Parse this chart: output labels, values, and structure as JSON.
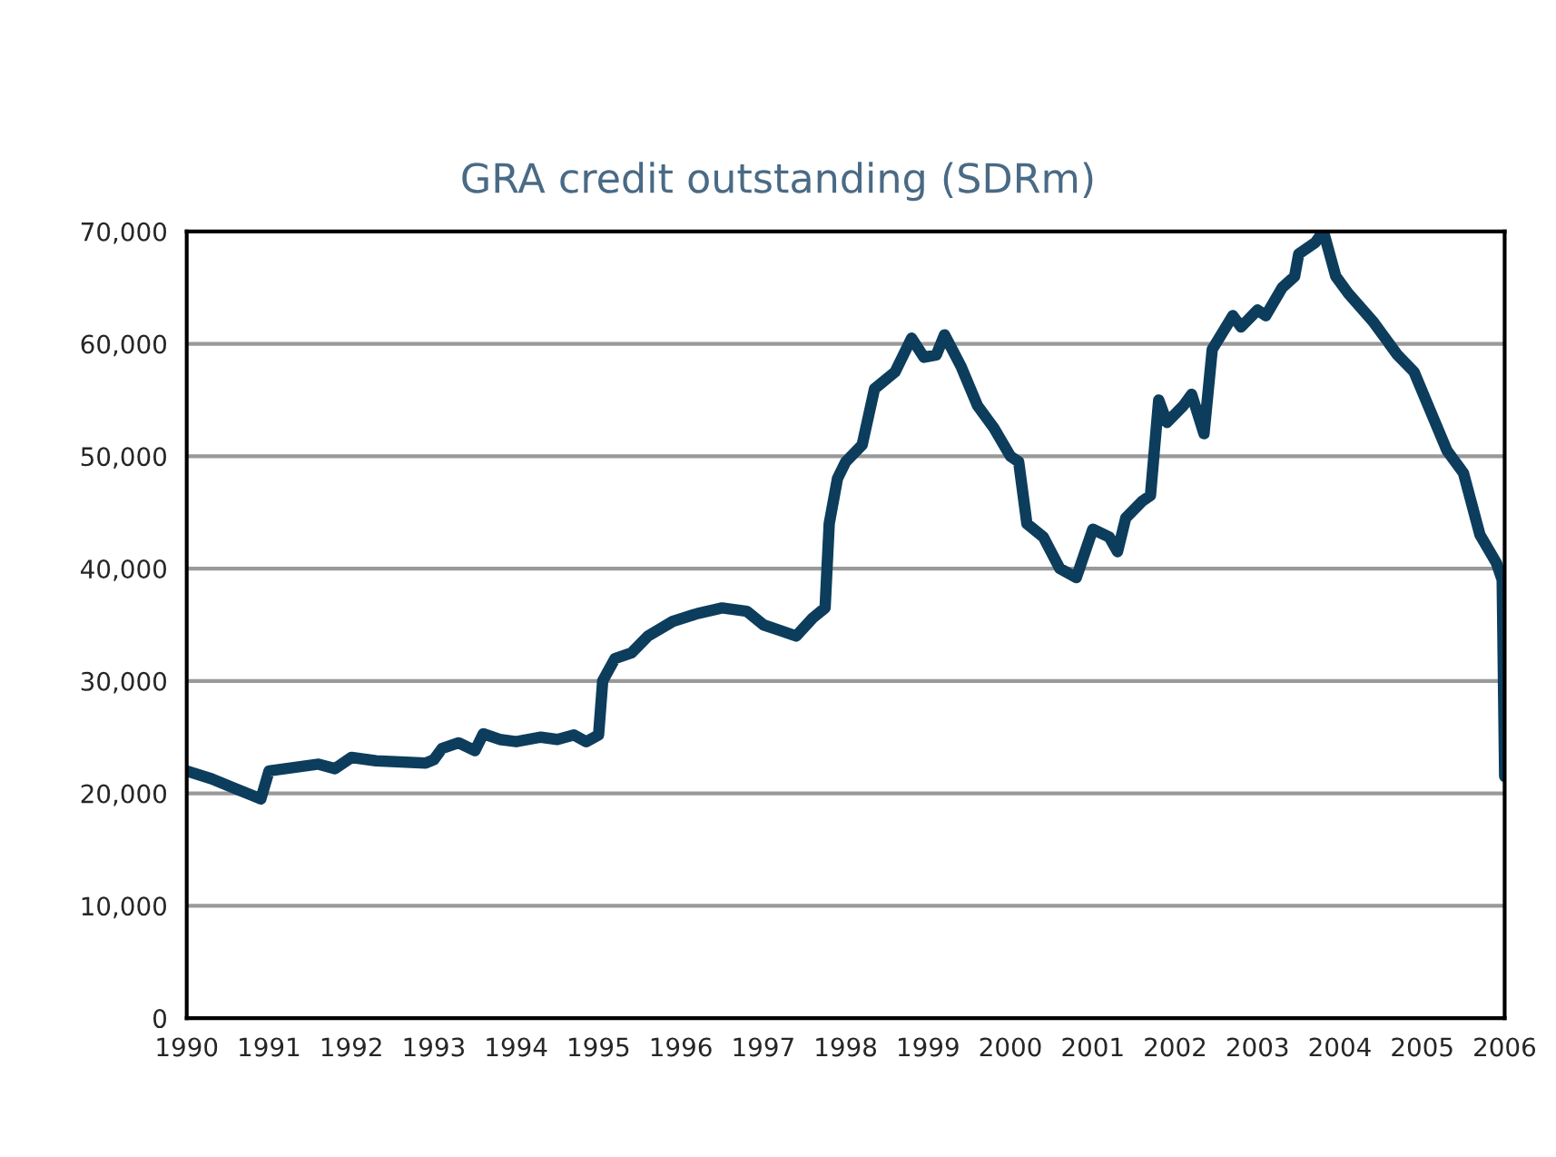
{
  "chart_data": {
    "type": "line",
    "title": "GRA credit outstanding (SDRm)",
    "x": [
      1990.0,
      1990.3,
      1990.8,
      1990.9,
      1991.0,
      1991.3,
      1991.6,
      1991.8,
      1992.0,
      1992.3,
      1992.6,
      1992.9,
      1993.0,
      1993.1,
      1993.3,
      1993.5,
      1993.6,
      1993.8,
      1994.0,
      1994.3,
      1994.5,
      1994.7,
      1994.85,
      1995.0,
      1995.05,
      1995.2,
      1995.4,
      1995.6,
      1995.9,
      1996.2,
      1996.5,
      1996.8,
      1997.0,
      1997.2,
      1997.4,
      1997.6,
      1997.75,
      1997.8,
      1997.9,
      1998.0,
      1998.2,
      1998.35,
      1998.6,
      1998.8,
      1998.95,
      1999.1,
      1999.2,
      1999.4,
      1999.6,
      1999.8,
      2000.0,
      2000.1,
      2000.2,
      2000.4,
      2000.6,
      2000.8,
      2001.0,
      2001.2,
      2001.3,
      2001.4,
      2001.6,
      2001.7,
      2001.8,
      2001.9,
      2002.1,
      2002.2,
      2002.35,
      2002.45,
      2002.7,
      2002.8,
      2003.0,
      2003.1,
      2003.3,
      2003.45,
      2003.5,
      2003.7,
      2003.8,
      2003.95,
      2004.1,
      2004.4,
      2004.7,
      2004.9,
      2005.1,
      2005.3,
      2005.5,
      2005.7,
      2005.9,
      2005.97,
      2006.0
    ],
    "series": [
      {
        "color": "#0d3d5c",
        "values": [
          22000,
          21300,
          19800,
          19500,
          22000,
          22300,
          22600,
          22200,
          23200,
          22900,
          22800,
          22700,
          23000,
          24000,
          24500,
          23800,
          25300,
          24800,
          24600,
          25000,
          24800,
          25200,
          24600,
          25200,
          30000,
          32000,
          32500,
          34000,
          35300,
          36000,
          36500,
          36200,
          35000,
          34500,
          34000,
          35600,
          36500,
          44000,
          48000,
          49500,
          51000,
          56000,
          57500,
          60500,
          58800,
          59000,
          60800,
          58000,
          54500,
          52500,
          50000,
          49500,
          44000,
          42800,
          40000,
          39200,
          43500,
          42800,
          41500,
          44500,
          46000,
          46500,
          55000,
          53000,
          54500,
          55500,
          52000,
          59500,
          62500,
          61500,
          63000,
          62500,
          65000,
          66000,
          68000,
          69000,
          70000,
          66000,
          64500,
          62000,
          59000,
          57500,
          54000,
          50500,
          48500,
          43000,
          40500,
          39000,
          21500
        ]
      }
    ],
    "xlim": [
      1990,
      2006
    ],
    "xticks": [
      1990,
      1991,
      1992,
      1993,
      1994,
      1995,
      1996,
      1997,
      1998,
      1999,
      2000,
      2001,
      2002,
      2003,
      2004,
      2005,
      2006
    ],
    "ylim": [
      0,
      70000
    ],
    "yticks": [
      {
        "value": 0,
        "label": "0"
      },
      {
        "value": 10000,
        "label": "10,000"
      },
      {
        "value": 20000,
        "label": "20,000"
      },
      {
        "value": 30000,
        "label": "30,000"
      },
      {
        "value": 40000,
        "label": "40,000"
      },
      {
        "value": 50000,
        "label": "50,000"
      },
      {
        "value": 60000,
        "label": "60,000"
      },
      {
        "value": 70000,
        "label": "70,000"
      }
    ],
    "grid": "y",
    "marker": "none",
    "line_style": "solid"
  }
}
